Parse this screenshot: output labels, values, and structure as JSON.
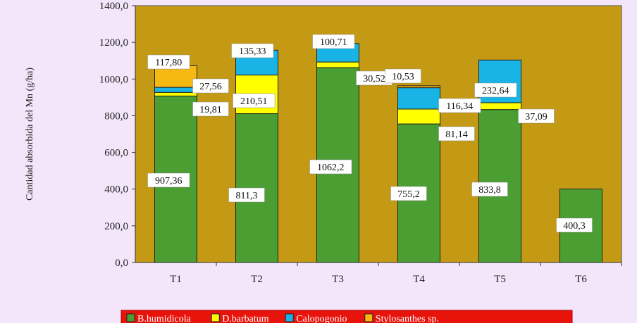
{
  "chart_data": {
    "type": "bar",
    "stacked": true,
    "categories": [
      "T1",
      "T2",
      "T3",
      "T4",
      "T5",
      "T6"
    ],
    "ylabel": "Cantidad absorbida del Mn  (g/ha)",
    "ylim": [
      0,
      1400
    ],
    "yticks": [
      "0,0",
      "200,0",
      "400,0",
      "600,0",
      "800,0",
      "1000,0",
      "1200,0",
      "1400,0"
    ],
    "grid": false,
    "legend_position": "bottom",
    "plot_background": "#c49a14",
    "series": [
      {
        "name": "B.humidicola",
        "color": "#4a9e32",
        "values": [
          907.36,
          811.3,
          1062.2,
          755.2,
          833.8,
          400.3
        ],
        "labels": [
          "907,36",
          "811,3",
          "1062,2",
          "755,2",
          "833,8",
          "400,3"
        ]
      },
      {
        "name": "D.barbatum",
        "color": "#ffff00",
        "values": [
          19.81,
          210.51,
          30.52,
          81.14,
          37.09,
          0
        ],
        "labels": [
          "19,81",
          "210,51",
          "30,52",
          "81,14",
          "37,09",
          ""
        ]
      },
      {
        "name": "Calopogonio",
        "color": "#19b4e6",
        "values": [
          27.56,
          135.33,
          100.71,
          116.34,
          232.64,
          0
        ],
        "labels": [
          "27,56",
          "135,33",
          "100,71",
          "116,34",
          "232,64",
          ""
        ]
      },
      {
        "name": "Stylosanthes sp.",
        "color": "#f6b911",
        "values": [
          117.8,
          0,
          0,
          10.53,
          0,
          0
        ],
        "labels": [
          "117,80",
          "",
          "",
          "10,53",
          "",
          ""
        ]
      }
    ]
  }
}
